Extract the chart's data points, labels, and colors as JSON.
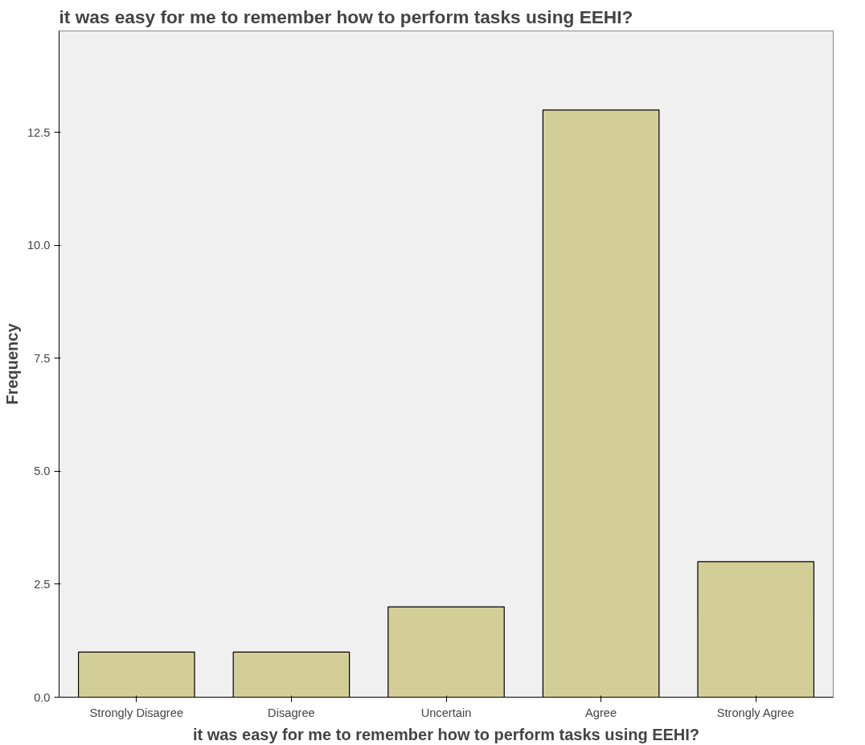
{
  "chart_data": {
    "type": "bar",
    "title": "it was easy for me to remember how to perform tasks using EEHI?",
    "xlabel": "it was easy for me to remember how to perform tasks using EEHI?",
    "ylabel": "Frequency",
    "categories": [
      "Strongly Disagree",
      "Disagree",
      "Uncertain",
      "Agree",
      "Strongly Agree"
    ],
    "values": [
      1,
      1,
      2,
      13,
      3
    ],
    "color": "#d3ce97",
    "ylim": [
      0,
      14.75
    ],
    "yticks": [
      {
        "value": 0,
        "label": "0.0"
      },
      {
        "value": 2.5,
        "label": "2.5"
      },
      {
        "value": 5,
        "label": "5.0"
      },
      {
        "value": 7.5,
        "label": "7.5"
      },
      {
        "value": 10,
        "label": "10.0"
      },
      {
        "value": 12.5,
        "label": "12.5"
      }
    ],
    "grid": false
  }
}
